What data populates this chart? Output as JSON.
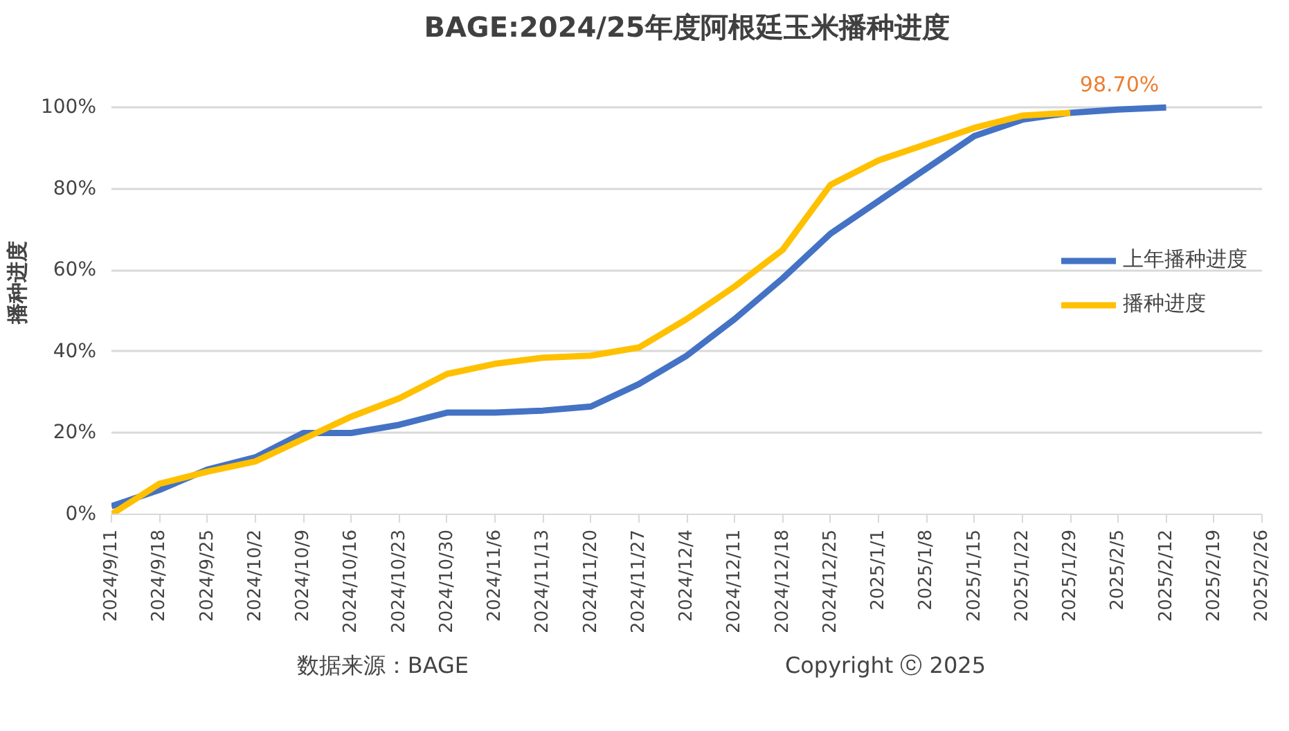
{
  "chart_data": {
    "type": "line",
    "title": "BAGE:2024/25年度阿根廷玉米播种进度",
    "ylabel": "播种进度",
    "categories": [
      "2024/9/11",
      "2024/9/18",
      "2024/9/25",
      "2024/10/2",
      "2024/10/9",
      "2024/10/16",
      "2024/10/23",
      "2024/10/30",
      "2024/11/6",
      "2024/11/13",
      "2024/11/20",
      "2024/11/27",
      "2024/12/4",
      "2024/12/11",
      "2024/12/18",
      "2024/12/25",
      "2025/1/1",
      "2025/1/8",
      "2025/1/15",
      "2025/1/22",
      "2025/1/29",
      "2025/2/5",
      "2025/2/12",
      "2025/2/19",
      "2025/2/26"
    ],
    "series": [
      {
        "name": "上年播种进度",
        "color": "#4472c4",
        "values": [
          2,
          6,
          11,
          14,
          20,
          20,
          22,
          25,
          25,
          25.5,
          26.5,
          32,
          39,
          48,
          58,
          69,
          77,
          85,
          93,
          97,
          98.7,
          99.5,
          100,
          null,
          null
        ]
      },
      {
        "name": "播种进度",
        "color": "#ffc000",
        "values": [
          0,
          7.5,
          10.5,
          13,
          18.5,
          24,
          28.5,
          34.5,
          37,
          38.5,
          39,
          41,
          48,
          56,
          65,
          81,
          87,
          91,
          95,
          98,
          98.7,
          null,
          null,
          null,
          null
        ]
      }
    ],
    "ylim": [
      0,
      100
    ],
    "yticks": [
      {
        "value": 0,
        "label": "0%"
      },
      {
        "value": 20,
        "label": "20%"
      },
      {
        "value": 40,
        "label": "40%"
      },
      {
        "value": 60,
        "label": "60%"
      },
      {
        "value": 80,
        "label": "80%"
      },
      {
        "value": 100,
        "label": "100%"
      }
    ],
    "grid": "y",
    "legend": "right",
    "marker": "none",
    "line_style": "solid",
    "annotations": [
      {
        "text": "98.70%",
        "x": "2025/1/29",
        "y": 98.7
      },
      "数据来源：BAGE",
      "Copyright ⓒ 2025"
    ]
  }
}
